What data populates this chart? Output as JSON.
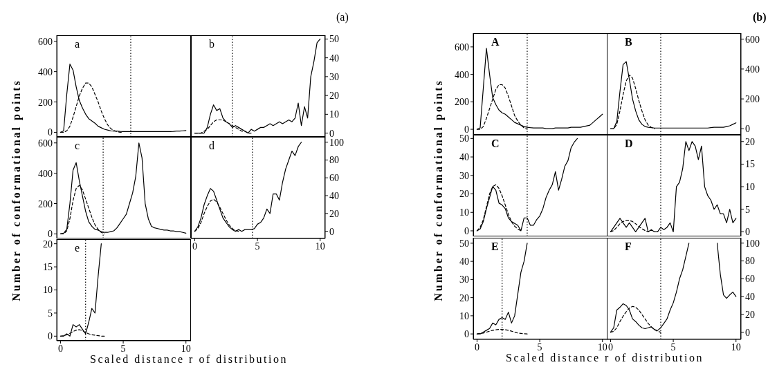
{
  "chart_data": [
    {
      "type": "line",
      "title": "a",
      "ylabel": "Number of conformational points",
      "annotations": [
        "(a)"
      ],
      "tick_labels": "y",
      "xlim": [
        -0.3,
        10.4
      ],
      "xticks": [
        0,
        5,
        10
      ],
      "ylim": [
        -30,
        640
      ],
      "yticks": [
        0,
        200,
        400,
        600
      ],
      "x": [
        0,
        0.25,
        0.5,
        0.75,
        1,
        1.25,
        1.5,
        1.75,
        2,
        2.25,
        2.5,
        2.75,
        3,
        3.25,
        3.5,
        3.75,
        4,
        4.25,
        4.5,
        4.75,
        5,
        5.25,
        5.5,
        5.75,
        6,
        6.25,
        6.5,
        6.75,
        7,
        7.25,
        7.5,
        7.75,
        8,
        8.25,
        8.5,
        8.75,
        9,
        9.25,
        9.5,
        9.75,
        10
      ],
      "series": [
        {
          "color": "#000000",
          "line_style": "solid",
          "values": [
            0,
            10,
            250,
            450,
            410,
            300,
            210,
            160,
            120,
            90,
            75,
            60,
            40,
            30,
            20,
            15,
            10,
            8,
            8,
            6,
            5,
            5,
            5,
            5,
            5,
            5,
            5,
            5,
            5,
            5,
            5,
            5,
            5,
            5,
            5,
            5,
            6,
            8,
            8,
            10,
            12
          ]
        },
        {
          "color": "#000000",
          "line_style": "dashed",
          "x": [
            0,
            0.25,
            0.5,
            0.75,
            1,
            1.25,
            1.5,
            1.75,
            2,
            2.25,
            2.5,
            2.75,
            3,
            3.25,
            3.5,
            3.75,
            4,
            4.25,
            4.5,
            4.75,
            5
          ],
          "values": [
            0,
            0,
            10,
            40,
            100,
            170,
            240,
            290,
            325,
            325,
            300,
            250,
            200,
            140,
            90,
            50,
            25,
            12,
            5,
            0,
            0
          ]
        }
      ],
      "ref_lines": [
        {
          "axis": "x",
          "value": 5.6,
          "line_style": "dotted",
          "color": "#000000"
        }
      ]
    },
    {
      "type": "line",
      "title": "b",
      "tick_labels": "y",
      "xlim": [
        -0.3,
        10.4
      ],
      "xticks": [
        0,
        5,
        10
      ],
      "ylim": [
        -2,
        52
      ],
      "yticks": [
        0,
        10,
        20,
        30,
        40,
        50
      ],
      "x": [
        0,
        0.25,
        0.5,
        0.75,
        1,
        1.25,
        1.5,
        1.75,
        2,
        2.25,
        2.5,
        2.75,
        3,
        3.25,
        3.5,
        3.75,
        4,
        4.25,
        4.5,
        4.75,
        5,
        5.25,
        5.5,
        5.75,
        6,
        6.25,
        6.5,
        6.75,
        7,
        7.25,
        7.5,
        7.75,
        8,
        8.25,
        8.5,
        8.75,
        9,
        9.25,
        9.5,
        9.75,
        10
      ],
      "series": [
        {
          "color": "#000000",
          "line_style": "solid",
          "values": [
            0,
            0,
            0,
            0,
            3,
            10,
            15,
            12,
            13,
            8,
            6,
            5,
            3,
            4,
            3,
            2,
            1,
            0,
            2,
            1,
            2,
            3,
            3,
            4,
            5,
            4,
            5,
            6,
            5,
            6,
            7,
            6,
            8,
            16,
            4,
            14,
            8,
            30,
            38,
            48,
            50
          ]
        },
        {
          "color": "#000000",
          "line_style": "dashed",
          "x": [
            0,
            0.25,
            0.5,
            0.75,
            1,
            1.25,
            1.5,
            1.75,
            2,
            2.25,
            2.5,
            2.75,
            3,
            3.25,
            3.5,
            3.75,
            4,
            4.25,
            4.5
          ],
          "values": [
            0,
            0,
            0,
            1,
            2,
            4,
            6,
            7,
            7,
            7,
            6,
            5,
            4,
            3,
            2,
            1,
            1,
            0,
            0
          ]
        }
      ],
      "ref_lines": [
        {
          "axis": "x",
          "value": 3.0,
          "line_style": "dotted",
          "color": "#000000"
        }
      ]
    },
    {
      "type": "line",
      "title": "c",
      "tick_labels": "y",
      "xlim": [
        -0.3,
        10.4
      ],
      "xticks": [
        0,
        5,
        10
      ],
      "ylim": [
        -30,
        640
      ],
      "yticks": [
        0,
        200,
        400,
        600
      ],
      "x": [
        0,
        0.25,
        0.5,
        0.75,
        1,
        1.25,
        1.5,
        1.75,
        2,
        2.25,
        2.5,
        2.75,
        3,
        3.25,
        3.5,
        3.75,
        4,
        4.25,
        4.5,
        4.75,
        5,
        5.25,
        5.5,
        5.75,
        6,
        6.25,
        6.5,
        6.75,
        7,
        7.25,
        7.5,
        7.75,
        8,
        8.25,
        8.5,
        8.75,
        9,
        9.25,
        9.5,
        9.75,
        10
      ],
      "series": [
        {
          "color": "#000000",
          "line_style": "solid",
          "values": [
            0,
            5,
            30,
            200,
            420,
            470,
            350,
            250,
            150,
            80,
            50,
            30,
            25,
            15,
            10,
            10,
            15,
            20,
            40,
            70,
            100,
            130,
            200,
            270,
            380,
            600,
            500,
            200,
            100,
            50,
            40,
            35,
            30,
            25,
            25,
            20,
            20,
            15,
            15,
            10,
            5
          ]
        },
        {
          "color": "#000000",
          "line_style": "dashed",
          "x": [
            0,
            0.25,
            0.5,
            0.75,
            1,
            1.25,
            1.5,
            1.75,
            2,
            2.25,
            2.5,
            2.75,
            3,
            3.25,
            3.5
          ],
          "values": [
            0,
            0,
            20,
            100,
            220,
            300,
            320,
            290,
            230,
            170,
            110,
            60,
            30,
            10,
            0
          ]
        }
      ],
      "ref_lines": [
        {
          "axis": "x",
          "value": 3.4,
          "line_style": "dotted",
          "color": "#000000"
        }
      ]
    },
    {
      "type": "line",
      "title": "d",
      "xlim": [
        -0.3,
        10.4
      ],
      "xticks": [
        0,
        5,
        10
      ],
      "ylim": [
        -8,
        106
      ],
      "yticks": [
        0,
        20,
        40,
        60,
        80,
        100
      ],
      "x": [
        0,
        0.25,
        0.5,
        0.75,
        1,
        1.25,
        1.5,
        1.75,
        2,
        2.25,
        2.5,
        2.75,
        3,
        3.25,
        3.5,
        3.75,
        4,
        4.25,
        4.5,
        4.75,
        5,
        5.25,
        5.5,
        5.75,
        6,
        6.25,
        6.5,
        6.75,
        7,
        7.25,
        7.5,
        7.75,
        8,
        8.25,
        8.5
      ],
      "series": [
        {
          "color": "#000000",
          "line_style": "solid",
          "values": [
            0,
            5,
            15,
            30,
            40,
            48,
            45,
            35,
            25,
            15,
            10,
            5,
            2,
            0,
            2,
            0,
            2,
            2,
            2,
            3,
            8,
            10,
            15,
            25,
            20,
            42,
            42,
            35,
            55,
            70,
            80,
            90,
            85,
            95,
            100
          ]
        },
        {
          "color": "#000000",
          "line_style": "dashed",
          "x": [
            0,
            0.25,
            0.5,
            0.75,
            1,
            1.25,
            1.5,
            1.75,
            2,
            2.25,
            2.5,
            2.75,
            3,
            3.25,
            3.5
          ],
          "values": [
            0,
            3,
            10,
            20,
            28,
            34,
            36,
            33,
            27,
            20,
            13,
            7,
            3,
            1,
            0
          ]
        }
      ],
      "ref_lines": [
        {
          "axis": "x",
          "value": 4.6,
          "line_style": "dotted",
          "color": "#000000"
        }
      ]
    },
    {
      "type": "line",
      "title": "e",
      "xlabel": "Scaled distance r of distribution",
      "xlim": [
        -0.3,
        10.4
      ],
      "xticks": [
        0,
        5,
        10
      ],
      "ylim": [
        -1,
        21
      ],
      "yticks": [
        0,
        5,
        10,
        15,
        20
      ],
      "x": [
        0,
        0.25,
        0.5,
        0.75,
        1,
        1.25,
        1.5,
        1.75,
        2,
        2.25,
        2.5,
        2.75,
        3,
        3.25
      ],
      "series": [
        {
          "color": "#000000",
          "line_style": "solid",
          "values": [
            0,
            0,
            0.5,
            0,
            2.5,
            2,
            2.5,
            1.5,
            0.5,
            3,
            6,
            5,
            13,
            20
          ]
        },
        {
          "color": "#000000",
          "line_style": "dashed",
          "x": [
            0,
            0.25,
            0.5,
            0.75,
            1,
            1.25,
            1.5,
            1.75,
            2,
            2.25,
            2.5,
            2.75,
            3,
            3.25,
            3.5
          ],
          "values": [
            0,
            0.1,
            0.3,
            0.6,
            1,
            1.3,
            1.4,
            1.2,
            0.8,
            0.5,
            0.3,
            0.2,
            0.1,
            0,
            0
          ]
        }
      ],
      "ref_lines": [
        {
          "axis": "x",
          "value": 2.0,
          "line_style": "dotted",
          "color": "#000000"
        }
      ]
    },
    {
      "type": "line",
      "title": "A",
      "ylabel": "Number of conformational points",
      "annotations": [
        "(b)"
      ],
      "tick_labels": "y",
      "xlim": [
        -0.3,
        10.4
      ],
      "xticks": [
        0,
        5,
        10
      ],
      "ylim": [
        -40,
        700
      ],
      "yticks": [
        0,
        200,
        400,
        600
      ],
      "x": [
        0,
        0.25,
        0.5,
        0.75,
        1,
        1.25,
        1.5,
        1.75,
        2,
        2.25,
        2.5,
        2.75,
        3,
        3.25,
        3.5,
        3.75,
        4,
        4.25,
        4.5,
        4.75,
        5,
        5.25,
        5.5,
        5.75,
        6,
        6.25,
        6.5,
        6.75,
        7,
        7.25,
        7.5,
        7.75,
        8,
        8.25,
        8.5,
        8.75,
        9,
        9.25,
        9.5,
        9.75,
        10
      ],
      "series": [
        {
          "color": "#000000",
          "line_style": "solid",
          "values": [
            0,
            10,
            300,
            590,
            400,
            230,
            180,
            140,
            120,
            110,
            90,
            70,
            50,
            40,
            30,
            20,
            15,
            12,
            10,
            10,
            10,
            10,
            5,
            5,
            5,
            10,
            10,
            10,
            10,
            10,
            15,
            15,
            15,
            15,
            20,
            25,
            30,
            50,
            70,
            90,
            110
          ]
        },
        {
          "color": "#000000",
          "line_style": "dashed",
          "x": [
            0,
            0.25,
            0.5,
            0.75,
            1,
            1.25,
            1.5,
            1.75,
            2,
            2.25,
            2.5,
            2.75,
            3,
            3.25,
            3.5,
            3.75,
            4
          ],
          "values": [
            0,
            0,
            20,
            80,
            150,
            220,
            290,
            325,
            325,
            300,
            240,
            170,
            100,
            60,
            30,
            10,
            0
          ]
        }
      ],
      "ref_lines": [
        {
          "axis": "x",
          "value": 4.0,
          "line_style": "dotted",
          "color": "#000000"
        }
      ]
    },
    {
      "type": "line",
      "title": "B",
      "tick_labels": "y",
      "xlim": [
        -0.3,
        10.4
      ],
      "xticks": [
        0,
        5,
        10
      ],
      "ylim": [
        -40,
        640
      ],
      "yticks": [
        0,
        200,
        400,
        600
      ],
      "x": [
        0,
        0.25,
        0.5,
        0.75,
        1,
        1.25,
        1.5,
        1.75,
        2,
        2.25,
        2.5,
        2.75,
        3,
        3.25,
        3.5,
        3.75,
        4,
        4.25,
        4.5,
        4.75,
        5,
        5.25,
        5.5,
        5.75,
        6,
        6.25,
        6.5,
        6.75,
        7,
        7.25,
        7.5,
        7.75,
        8,
        8.25,
        8.5,
        8.75,
        9,
        9.25,
        9.5,
        9.75,
        10
      ],
      "series": [
        {
          "color": "#000000",
          "line_style": "solid",
          "values": [
            0,
            0,
            50,
            250,
            430,
            450,
            330,
            200,
            120,
            60,
            30,
            15,
            10,
            8,
            5,
            5,
            5,
            5,
            5,
            5,
            5,
            5,
            5,
            5,
            5,
            5,
            5,
            5,
            5,
            5,
            5,
            5,
            8,
            10,
            10,
            10,
            10,
            15,
            20,
            30,
            40
          ]
        },
        {
          "color": "#000000",
          "line_style": "dashed",
          "x": [
            0,
            0.25,
            0.5,
            0.75,
            1,
            1.25,
            1.5,
            1.75,
            2,
            2.25,
            2.5,
            2.75,
            3,
            3.25,
            3.5
          ],
          "values": [
            0,
            0,
            30,
            120,
            230,
            320,
            360,
            340,
            270,
            190,
            120,
            60,
            25,
            10,
            0
          ]
        }
      ],
      "ref_lines": [
        {
          "axis": "x",
          "value": 4.0,
          "line_style": "dotted",
          "color": "#000000"
        }
      ]
    },
    {
      "type": "line",
      "title": "C",
      "tick_labels": "y",
      "xlim": [
        -0.3,
        10.4
      ],
      "xticks": [
        0,
        5,
        10
      ],
      "ylim": [
        -3,
        52
      ],
      "yticks": [
        0,
        10,
        20,
        30,
        40,
        50
      ],
      "x": [
        0,
        0.25,
        0.5,
        0.75,
        1,
        1.25,
        1.5,
        1.75,
        2,
        2.25,
        2.5,
        2.75,
        3,
        3.25,
        3.5,
        3.75,
        4,
        4.25,
        4.5,
        4.75,
        5,
        5.25,
        5.5,
        5.75,
        6,
        6.25,
        6.5,
        6.75,
        7,
        7.25,
        7.5,
        7.75,
        8
      ],
      "series": [
        {
          "color": "#000000",
          "line_style": "solid",
          "values": [
            0,
            1,
            5,
            12,
            18,
            24,
            22,
            15,
            14,
            12,
            7,
            5,
            4,
            3,
            0,
            7,
            7,
            3,
            3,
            6,
            8,
            12,
            18,
            22,
            25,
            32,
            22,
            28,
            35,
            38,
            45,
            48,
            50
          ]
        },
        {
          "color": "#000000",
          "line_style": "dashed",
          "x": [
            0,
            0.25,
            0.5,
            0.75,
            1,
            1.25,
            1.5,
            1.75,
            2,
            2.25,
            2.5,
            2.75,
            3,
            3.25,
            3.5
          ],
          "values": [
            0,
            2,
            6,
            13,
            20,
            24,
            25,
            23,
            19,
            14,
            9,
            5,
            2.5,
            1,
            0
          ]
        }
      ],
      "ref_lines": [
        {
          "axis": "x",
          "value": 4.0,
          "line_style": "dotted",
          "color": "#000000"
        }
      ]
    },
    {
      "type": "line",
      "title": "D",
      "tick_labels": "y",
      "xlim": [
        -0.3,
        10.4
      ],
      "xticks": [
        0,
        5,
        10
      ],
      "ylim": [
        -1,
        21.5
      ],
      "yticks": [
        0,
        5,
        10,
        15,
        20
      ],
      "x": [
        0,
        0.25,
        0.5,
        0.75,
        1,
        1.25,
        1.5,
        1.75,
        2,
        2.25,
        2.5,
        2.75,
        3,
        3.25,
        3.5,
        3.75,
        4,
        4.25,
        4.5,
        4.75,
        5,
        5.25,
        5.5,
        5.75,
        6,
        6.25,
        6.5,
        6.75,
        7,
        7.25,
        7.5,
        7.75,
        8,
        8.25,
        8.5,
        8.75,
        9,
        9.25,
        9.5,
        9.75,
        10
      ],
      "series": [
        {
          "color": "#000000",
          "line_style": "solid",
          "values": [
            0,
            1,
            2,
            3,
            2,
            1,
            2,
            1,
            0,
            1,
            2,
            3,
            0,
            0.5,
            0,
            0,
            1,
            0.5,
            1,
            2,
            0,
            10,
            11,
            14,
            20,
            18,
            20,
            19,
            16,
            19,
            10,
            8,
            7,
            5,
            6,
            4,
            4,
            2,
            5,
            2,
            3
          ]
        },
        {
          "color": "#000000",
          "line_style": "dashed",
          "x": [
            0,
            0.25,
            0.5,
            0.75,
            1,
            1.25,
            1.5,
            1.75,
            2,
            2.25,
            2.5,
            2.75,
            3
          ],
          "values": [
            0,
            0.3,
            1,
            1.8,
            2.3,
            2.5,
            2.5,
            2.3,
            1.8,
            1.2,
            0.7,
            0.3,
            0
          ]
        }
      ],
      "ref_lines": [
        {
          "axis": "x",
          "value": 4.0,
          "line_style": "dotted",
          "color": "#000000"
        }
      ]
    },
    {
      "type": "line",
      "title": "E",
      "xlabel": "Scaled distance r of distribution",
      "xlim": [
        -0.3,
        10.4
      ],
      "xticks": [
        0,
        5,
        10
      ],
      "ylim": [
        -3,
        53
      ],
      "yticks": [
        0,
        10,
        20,
        30,
        40,
        50
      ],
      "x": [
        0,
        0.25,
        0.5,
        0.75,
        1,
        1.25,
        1.5,
        1.75,
        2,
        2.25,
        2.5,
        2.75,
        3,
        3.25,
        3.5,
        3.75,
        4
      ],
      "series": [
        {
          "color": "#000000",
          "line_style": "solid",
          "values": [
            0,
            0,
            1,
            2,
            3,
            6,
            5,
            8,
            9,
            8,
            12,
            6,
            10,
            22,
            34,
            40,
            50
          ]
        },
        {
          "color": "#000000",
          "line_style": "dashed",
          "x": [
            0,
            0.25,
            0.5,
            0.75,
            1,
            1.25,
            1.5,
            1.75,
            2,
            2.25,
            2.5,
            2.75,
            3,
            3.25,
            3.5,
            3.75,
            4
          ],
          "values": [
            0,
            0.3,
            0.5,
            1,
            1.5,
            2,
            2.3,
            2.5,
            2.5,
            2.3,
            2,
            1.5,
            1,
            0.5,
            0.3,
            0.1,
            0
          ]
        }
      ],
      "ref_lines": [
        {
          "axis": "x",
          "value": 2.0,
          "line_style": "dotted",
          "color": "#000000"
        }
      ]
    },
    {
      "type": "line",
      "title": "F",
      "xlim": [
        -0.3,
        10.4
      ],
      "xticks": [
        0,
        5,
        10
      ],
      "ylim": [
        -8,
        106
      ],
      "yticks": [
        0,
        20,
        40,
        60,
        80,
        100
      ],
      "x": [
        0,
        0.25,
        0.5,
        0.75,
        1,
        1.25,
        1.5,
        1.75,
        2,
        2.25,
        2.5,
        2.75,
        3,
        3.25,
        3.5,
        3.75,
        4,
        4.25,
        4.5,
        4.75,
        5,
        5.25,
        5.5,
        5.75,
        6,
        6.25,
        6.5,
        6.75,
        7,
        7.25,
        7.5,
        7.75,
        8,
        8.25,
        8.5,
        8.75,
        9,
        9.25,
        9.5,
        9.75,
        10
      ],
      "series": [
        {
          "color": "#000000",
          "line_style": "solid",
          "values": [
            0,
            5,
            25,
            28,
            32,
            30,
            25,
            15,
            12,
            8,
            5,
            4,
            5,
            6,
            3,
            2,
            5,
            10,
            15,
            25,
            33,
            45,
            60,
            70,
            85,
            100,
            null,
            null,
            null,
            null,
            null,
            null,
            null,
            null,
            100,
            65,
            42,
            38,
            42,
            45,
            40
          ]
        },
        {
          "color": "#000000",
          "line_style": "dashed",
          "x": [
            0,
            0.25,
            0.5,
            0.75,
            1,
            1.25,
            1.5,
            1.75,
            2,
            2.25,
            2.5,
            2.75,
            3,
            3.25,
            3.5,
            3.75,
            4
          ],
          "values": [
            0,
            1,
            5,
            12,
            18,
            23,
            27,
            29,
            28,
            25,
            20,
            15,
            10,
            6,
            3,
            1,
            0
          ]
        }
      ],
      "ref_lines": [
        {
          "axis": "x",
          "value": 4.0,
          "line_style": "dotted",
          "color": "#000000"
        }
      ]
    }
  ]
}
